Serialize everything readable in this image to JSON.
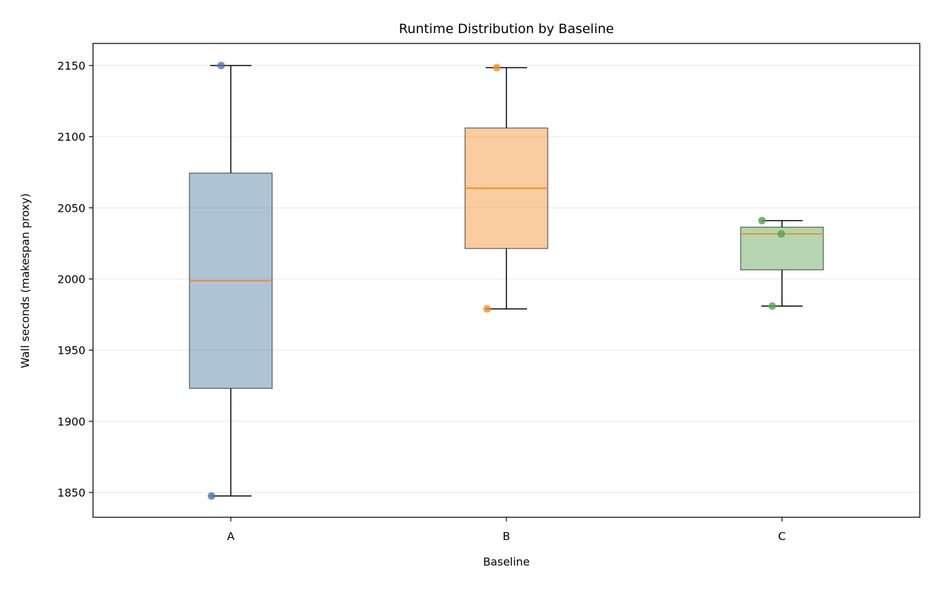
{
  "chart_data": {
    "type": "box",
    "title": "Runtime Distribution by Baseline",
    "xlabel": "Baseline",
    "ylabel": "Wall seconds (makespan proxy)",
    "categories": [
      "A",
      "B",
      "C"
    ],
    "ylim": [
      1832,
      2165
    ],
    "yticks": [
      1850,
      1900,
      1950,
      2000,
      2050,
      2100,
      2150
    ],
    "grid": "horizontal",
    "series": [
      {
        "category": "A",
        "color": "#4e79a7",
        "whisker_low": 1847.5,
        "q1": 1923.1,
        "median": 1998.8,
        "q3": 2074.4,
        "whisker_high": 2150,
        "points": [
          2150,
          1847.5
        ]
      },
      {
        "category": "B",
        "color": "#f28e2b",
        "whisker_low": 1979,
        "q1": 2021.4,
        "median": 2063.8,
        "q3": 2106.1,
        "whisker_high": 2148.5,
        "points": [
          2148.5,
          1979
        ]
      },
      {
        "category": "C",
        "color": "#59a14f",
        "whisker_low": 1981,
        "q1": 2006.4,
        "median": 2031.7,
        "q3": 2036.4,
        "whisker_high": 2041,
        "points": [
          2041,
          2031.7,
          1981
        ]
      }
    ],
    "median_color": "#ff7f0e"
  }
}
